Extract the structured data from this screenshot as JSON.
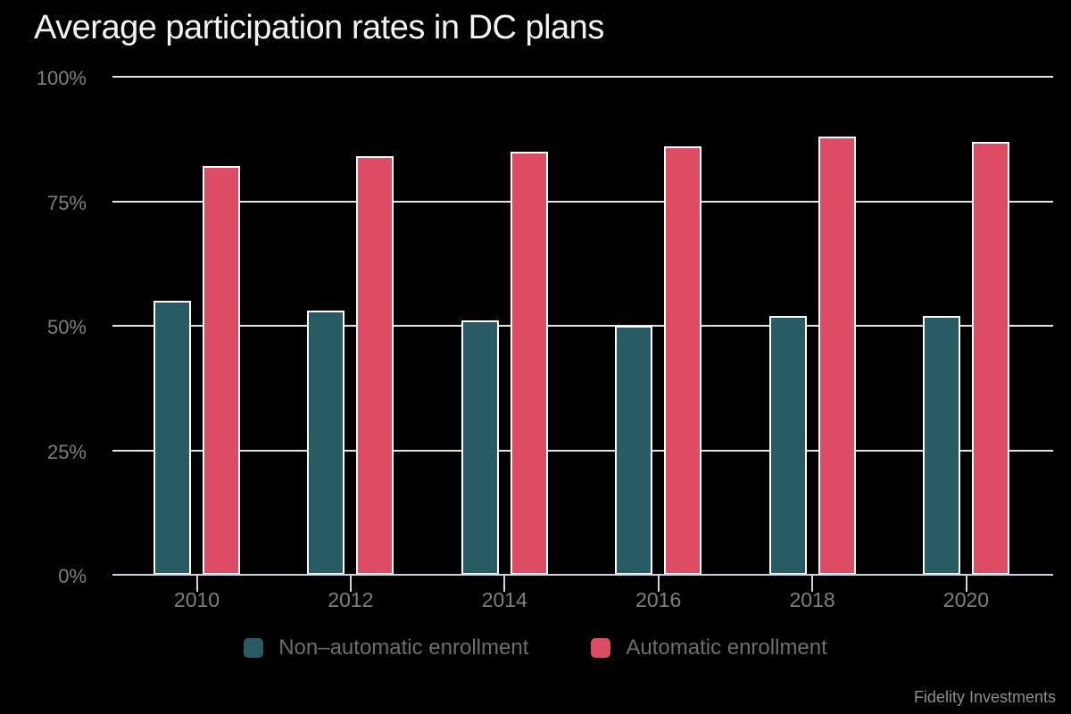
{
  "colors": {
    "background": "#000000",
    "title_text": "#F2F2F2",
    "axis_label": "#7F7F7F",
    "gridline": "#E6E4E1",
    "axis_line": "#CDD2E1",
    "bar_stroke": "#FFFFFF",
    "legend_text": "#6E6E6E",
    "source_text": "#8E8E8E",
    "non_automatic": "#285B64",
    "automatic": "#DD4C63"
  },
  "chart_data": {
    "type": "bar",
    "title": "Average participation rates in DC plans",
    "categories": [
      "2010",
      "2012",
      "2014",
      "2016",
      "2018",
      "2020"
    ],
    "series": [
      {
        "name": "Non–automatic enrollment",
        "key": "non-automatic",
        "color": "#285B64",
        "values": [
          55,
          53,
          51,
          50,
          52,
          52
        ]
      },
      {
        "name": "Automatic enrollment",
        "key": "automatic",
        "color": "#DD4C63",
        "values": [
          82,
          84,
          85,
          86,
          88,
          87
        ]
      }
    ],
    "xlabel": "",
    "ylabel": "",
    "ylim": [
      0,
      100
    ],
    "yticks": [
      100,
      75,
      50,
      25,
      0
    ],
    "ytick_labels": [
      "100%",
      "75%",
      "50%",
      "25%",
      "0%"
    ],
    "grid": true,
    "legend_position": "bottom",
    "source": "Fidelity Investments"
  }
}
